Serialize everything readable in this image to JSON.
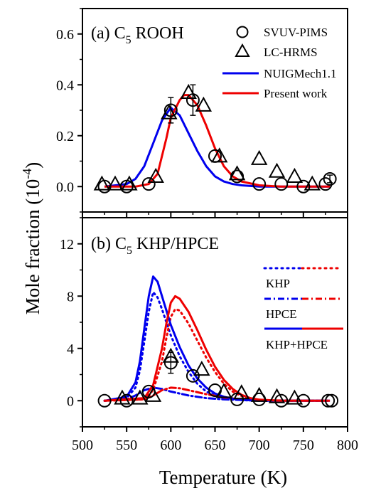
{
  "chart_data": [
    {
      "panel": "a",
      "type": "line",
      "title": "(a) C5 ROOH",
      "title_parts": {
        "prefix": "(a) C",
        "sub": "5",
        "suffix": " ROOH"
      },
      "xlabel": "Temperature (K)",
      "ylabel": "Mole fraction (10-4)",
      "ylabel_parts": {
        "main": "Mole fraction (10",
        "sup": "-4",
        "end": ")"
      },
      "xlim": [
        500,
        800
      ],
      "ylim": [
        -0.1,
        0.7
      ],
      "xticks": [
        "500",
        "550",
        "600",
        "650",
        "700",
        "750",
        "800"
      ],
      "yticks": [
        {
          "value": 0.0,
          "label": "0.0"
        },
        {
          "value": 0.2,
          "label": "0.2"
        },
        {
          "value": 0.4,
          "label": "0.4"
        },
        {
          "value": 0.6,
          "label": "0.6"
        }
      ],
      "legend_position": "top-right",
      "colors": {
        "nuig": "#0000ee",
        "present": "#ee0000",
        "markers": "#000000"
      },
      "series": [
        {
          "name": "SVUV-PIMS",
          "kind": "marker-circle",
          "points": [
            {
              "x": 525,
              "y": 0.0
            },
            {
              "x": 550,
              "y": 0.0
            },
            {
              "x": 575,
              "y": 0.01
            },
            {
              "x": 600,
              "y": 0.3,
              "err": 0.05
            },
            {
              "x": 625,
              "y": 0.34,
              "err": 0.06
            },
            {
              "x": 650,
              "y": 0.12
            },
            {
              "x": 675,
              "y": 0.04
            },
            {
              "x": 700,
              "y": 0.01
            },
            {
              "x": 725,
              "y": 0.01
            },
            {
              "x": 750,
              "y": 0.0
            },
            {
              "x": 775,
              "y": 0.01
            },
            {
              "x": 780,
              "y": 0.03,
              "err": 0.015
            }
          ]
        },
        {
          "name": "LC-HRMS",
          "kind": "marker-triangle",
          "points": [
            {
              "x": 522,
              "y": 0.01
            },
            {
              "x": 537,
              "y": 0.01
            },
            {
              "x": 553,
              "y": 0.01
            },
            {
              "x": 583,
              "y": 0.04
            },
            {
              "x": 598,
              "y": 0.29
            },
            {
              "x": 620,
              "y": 0.37
            },
            {
              "x": 637,
              "y": 0.32
            },
            {
              "x": 655,
              "y": 0.12
            },
            {
              "x": 675,
              "y": 0.05
            },
            {
              "x": 700,
              "y": 0.11
            },
            {
              "x": 720,
              "y": 0.06
            },
            {
              "x": 740,
              "y": 0.04
            },
            {
              "x": 760,
              "y": 0.01
            }
          ]
        },
        {
          "name": "NUIGMech1.1",
          "kind": "line-solid",
          "color": "#0000ee",
          "x": [
            525,
            550,
            560,
            570,
            580,
            590,
            600,
            610,
            620,
            630,
            640,
            650,
            660,
            670,
            680,
            700,
            725,
            750,
            780
          ],
          "y": [
            0.0,
            0.01,
            0.03,
            0.08,
            0.17,
            0.26,
            0.31,
            0.28,
            0.21,
            0.14,
            0.08,
            0.04,
            0.02,
            0.01,
            0.005,
            0.0,
            0.0,
            0.0,
            0.0
          ]
        },
        {
          "name": "Present work",
          "kind": "line-solid",
          "color": "#ee0000",
          "x": [
            525,
            560,
            575,
            585,
            595,
            600,
            610,
            615,
            620,
            630,
            640,
            650,
            660,
            670,
            680,
            700,
            725,
            750,
            780
          ],
          "y": [
            0.0,
            0.0,
            0.01,
            0.05,
            0.19,
            0.27,
            0.34,
            0.36,
            0.36,
            0.32,
            0.24,
            0.15,
            0.08,
            0.04,
            0.02,
            0.005,
            0.0,
            0.0,
            0.0
          ]
        }
      ]
    },
    {
      "panel": "b",
      "type": "line",
      "title": "(b) C5 KHP/HPCE",
      "title_parts": {
        "prefix": "(b) C",
        "sub": "5",
        "suffix": " KHP/HPCE"
      },
      "xlim": [
        500,
        800
      ],
      "ylim": [
        -2,
        14
      ],
      "xticks": [
        "500",
        "550",
        "600",
        "650",
        "700",
        "750",
        "800"
      ],
      "yticks": [
        {
          "value": 0,
          "label": "0"
        },
        {
          "value": 4,
          "label": "4"
        },
        {
          "value": 8,
          "label": "8"
        },
        {
          "value": 12,
          "label": "12"
        }
      ],
      "legend_position": "right",
      "legend_labels": [
        "KHP",
        "HPCE",
        "KHP+HPCE"
      ],
      "series": [
        {
          "name": "SVUV-PIMS",
          "kind": "marker-circle",
          "points": [
            {
              "x": 525,
              "y": 0.0
            },
            {
              "x": 550,
              "y": 0.0
            },
            {
              "x": 575,
              "y": 0.7
            },
            {
              "x": 600,
              "y": 2.9,
              "err": 0.8
            },
            {
              "x": 625,
              "y": 1.9
            },
            {
              "x": 650,
              "y": 0.8
            },
            {
              "x": 675,
              "y": 0.1
            },
            {
              "x": 700,
              "y": 0.1
            },
            {
              "x": 725,
              "y": 0.0
            },
            {
              "x": 750,
              "y": 0.0
            },
            {
              "x": 778,
              "y": 0.0
            },
            {
              "x": 782,
              "y": 0.0
            }
          ]
        },
        {
          "name": "LC-HRMS",
          "kind": "marker-triangle",
          "points": [
            {
              "x": 545,
              "y": 0.2
            },
            {
              "x": 565,
              "y": 0.2
            },
            {
              "x": 580,
              "y": 0.4
            },
            {
              "x": 600,
              "y": 3.4
            },
            {
              "x": 635,
              "y": 2.4
            },
            {
              "x": 660,
              "y": 0.7
            },
            {
              "x": 680,
              "y": 0.6
            },
            {
              "x": 700,
              "y": 0.4
            },
            {
              "x": 720,
              "y": 0.3
            },
            {
              "x": 740,
              "y": 0.2
            }
          ]
        },
        {
          "name": "KHP (NUIGMech1.1)",
          "kind": "line-dotted",
          "color": "#0000ee",
          "x": [
            525,
            550,
            560,
            565,
            570,
            575,
            580,
            585,
            590,
            595,
            600,
            610,
            620,
            630,
            640,
            650,
            660,
            670,
            680,
            700,
            725,
            780
          ],
          "y": [
            0.0,
            0.2,
            1.0,
            2.3,
            4.5,
            6.8,
            8.3,
            7.9,
            7.0,
            6.0,
            5.0,
            3.4,
            2.2,
            1.3,
            0.7,
            0.4,
            0.2,
            0.1,
            0.05,
            0.0,
            0.0,
            0.0
          ]
        },
        {
          "name": "KHP (Present work)",
          "kind": "line-dotted",
          "color": "#ee0000",
          "x": [
            525,
            570,
            580,
            590,
            595,
            600,
            605,
            610,
            620,
            630,
            640,
            650,
            660,
            670,
            680,
            690,
            700,
            725,
            780
          ],
          "y": [
            0.0,
            0.1,
            0.8,
            3.0,
            4.8,
            6.4,
            7.0,
            6.9,
            5.9,
            4.6,
            3.3,
            2.2,
            1.3,
            0.7,
            0.35,
            0.15,
            0.05,
            0.0,
            0.0
          ]
        },
        {
          "name": "HPCE (NUIGMech1.1)",
          "kind": "line-dashdot",
          "color": "#0000ee",
          "x": [
            525,
            550,
            560,
            570,
            580,
            590,
            600,
            620,
            640,
            660,
            680,
            700,
            780
          ],
          "y": [
            0.0,
            0.1,
            0.4,
            0.8,
            1.0,
            0.9,
            0.7,
            0.4,
            0.2,
            0.1,
            0.05,
            0.0,
            0.0
          ]
        },
        {
          "name": "HPCE (Present work)",
          "kind": "line-dashdot",
          "color": "#ee0000",
          "x": [
            525,
            570,
            580,
            590,
            600,
            610,
            620,
            640,
            660,
            680,
            700,
            780
          ],
          "y": [
            0.0,
            0.1,
            0.4,
            0.8,
            1.0,
            0.95,
            0.8,
            0.5,
            0.25,
            0.1,
            0.03,
            0.0
          ]
        },
        {
          "name": "KHP+HPCE (NUIGMech1.1)",
          "kind": "line-solid",
          "color": "#0000ee",
          "x": [
            525,
            550,
            560,
            565,
            570,
            575,
            580,
            585,
            590,
            595,
            600,
            610,
            620,
            630,
            640,
            650,
            660,
            670,
            680,
            700,
            725,
            780
          ],
          "y": [
            0.0,
            0.3,
            1.4,
            3.0,
            5.5,
            8.0,
            9.5,
            9.1,
            8.0,
            6.9,
            5.8,
            4.1,
            2.7,
            1.7,
            1.0,
            0.55,
            0.3,
            0.15,
            0.07,
            0.02,
            0.0,
            0.0
          ]
        },
        {
          "name": "KHP+HPCE (Present work)",
          "kind": "line-solid",
          "color": "#ee0000",
          "x": [
            525,
            570,
            580,
            590,
            595,
            600,
            605,
            610,
            620,
            630,
            640,
            650,
            660,
            670,
            680,
            690,
            700,
            725,
            780
          ],
          "y": [
            0.0,
            0.2,
            1.2,
            4.0,
            5.9,
            7.5,
            8.0,
            7.8,
            6.8,
            5.4,
            3.9,
            2.6,
            1.6,
            0.9,
            0.45,
            0.2,
            0.08,
            0.0,
            0.0
          ]
        }
      ]
    }
  ]
}
